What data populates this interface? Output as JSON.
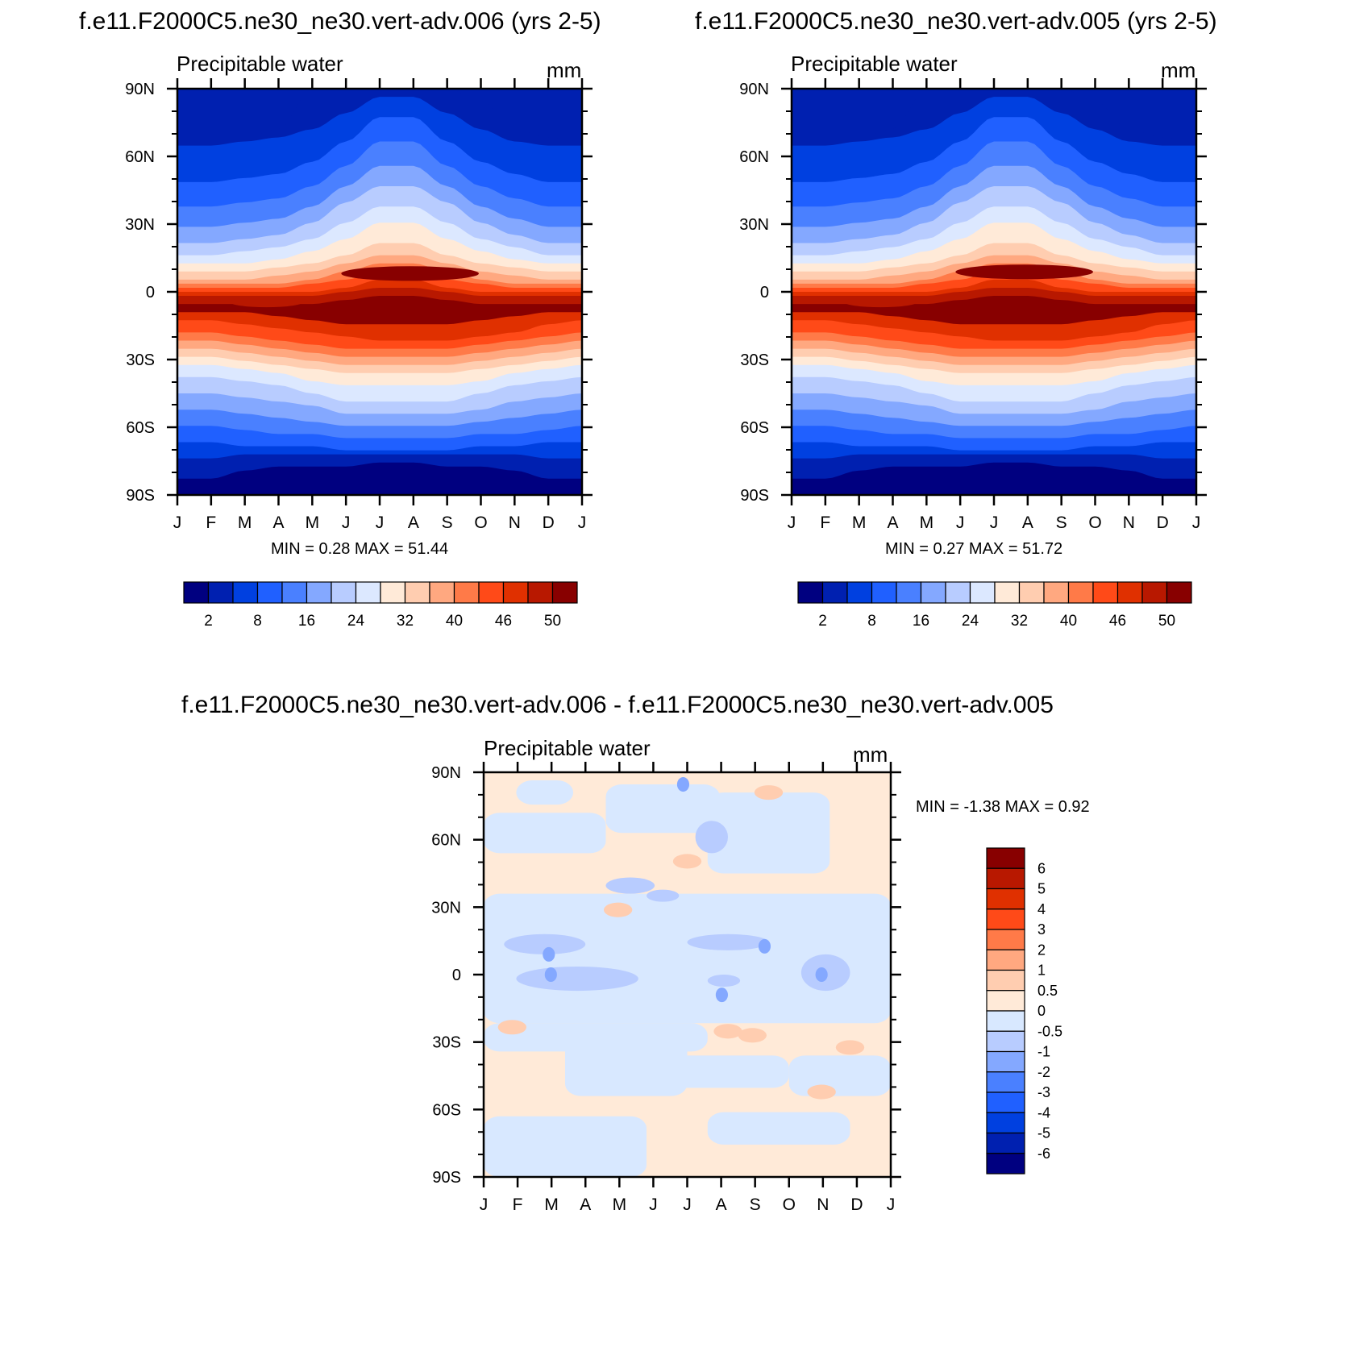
{
  "palette": [
    "#000080",
    "#0020b0",
    "#0040e0",
    "#2060ff",
    "#4a80ff",
    "#84a8ff",
    "#b8ccff",
    "#dce8ff",
    "#ffead8",
    "#ffcdb0",
    "#ffa880",
    "#ff7a48",
    "#ff4a18",
    "#e03000",
    "#b81800",
    "#880000"
  ],
  "diff_palette": [
    "#000080",
    "#0020b0",
    "#0040e0",
    "#2060ff",
    "#4a80ff",
    "#84a8ff",
    "#b8ccff",
    "#d8e8ff",
    "#ffead8",
    "#ffcdb0",
    "#ffa880",
    "#ff7a48",
    "#ff4a18",
    "#e03000",
    "#b81800",
    "#880000"
  ],
  "month_ticks": [
    "J",
    "F",
    "M",
    "A",
    "M",
    "J",
    "J",
    "A",
    "S",
    "O",
    "N",
    "D",
    "J"
  ],
  "lat_ticks": [
    "90N",
    "60N",
    "30N",
    "0",
    "30S",
    "60S",
    "90S"
  ],
  "panels": [
    {
      "title": "f.e11.F2000C5.ne30_ne30.vert-adv.006 (yrs 2-5)",
      "left_label": "Precipitable water",
      "right_label": "mm",
      "stats": "MIN =   0.28 MAX =  51.44",
      "colorbar_labels": [
        "2",
        "8",
        "16",
        "24",
        "32",
        "40",
        "46",
        "50"
      ]
    },
    {
      "title": "f.e11.F2000C5.ne30_ne30.vert-adv.005 (yrs 2-5)",
      "left_label": "Precipitable water",
      "right_label": "mm",
      "stats": "MIN =   0.27 MAX =  51.72",
      "colorbar_labels": [
        "2",
        "8",
        "16",
        "24",
        "32",
        "40",
        "46",
        "50"
      ]
    },
    {
      "title": "f.e11.F2000C5.ne30_ne30.vert-adv.006 - f.e11.F2000C5.ne30_ne30.vert-adv.005",
      "left_label": "Precipitable water",
      "right_label": "mm",
      "stats": "MIN =  -1.38 MAX =   0.92",
      "colorbar_labels": [
        "6",
        "5",
        "4",
        "3",
        "2",
        "1",
        "0.5",
        "0",
        "-0.5",
        "-1",
        "-2",
        "-3",
        "-4",
        "-5",
        "-6"
      ]
    }
  ],
  "chart_data": [
    {
      "type": "heatmap",
      "title": "f.e11.F2000C5.ne30_ne30.vert-adv.006 (yrs 2-5)",
      "variable": "Precipitable water",
      "units": "mm",
      "x": [
        "J",
        "F",
        "M",
        "A",
        "M",
        "J",
        "J",
        "A",
        "S",
        "O",
        "N",
        "D",
        "J"
      ],
      "y": [
        "90N",
        "60N",
        "30N",
        "0",
        "30S",
        "60S",
        "90S"
      ],
      "levels": [
        2,
        5,
        8,
        12,
        16,
        20,
        24,
        28,
        32,
        36,
        40,
        44,
        46,
        48,
        50
      ],
      "min": 0.28,
      "max": 51.44,
      "values_approx": [
        [
          1,
          1,
          1,
          1,
          2,
          4,
          6,
          5,
          3,
          2,
          1,
          1,
          1
        ],
        [
          5,
          5,
          5,
          6,
          9,
          14,
          18,
          17,
          12,
          8,
          6,
          5,
          5
        ],
        [
          18,
          18,
          18,
          20,
          23,
          28,
          34,
          33,
          28,
          24,
          21,
          19,
          18
        ],
        [
          40,
          41,
          42,
          42,
          43,
          45,
          47,
          48,
          46,
          44,
          43,
          41,
          40
        ],
        [
          30,
          31,
          32,
          30,
          27,
          24,
          22,
          22,
          23,
          25,
          27,
          29,
          30
        ],
        [
          10,
          10,
          9,
          9,
          8,
          7,
          7,
          7,
          8,
          8,
          9,
          10,
          10
        ],
        [
          1,
          1,
          1,
          1,
          1,
          1,
          1,
          1,
          1,
          1,
          1,
          1,
          1
        ]
      ]
    },
    {
      "type": "heatmap",
      "title": "f.e11.F2000C5.ne30_ne30.vert-adv.005 (yrs 2-5)",
      "variable": "Precipitable water",
      "units": "mm",
      "x": [
        "J",
        "F",
        "M",
        "A",
        "M",
        "J",
        "J",
        "A",
        "S",
        "O",
        "N",
        "D",
        "J"
      ],
      "y": [
        "90N",
        "60N",
        "30N",
        "0",
        "30S",
        "60S",
        "90S"
      ],
      "levels": [
        2,
        5,
        8,
        12,
        16,
        20,
        24,
        28,
        32,
        36,
        40,
        44,
        46,
        48,
        50
      ],
      "min": 0.27,
      "max": 51.72,
      "values_approx": [
        [
          1,
          1,
          1,
          1,
          2,
          4,
          6,
          5,
          3,
          2,
          1,
          1,
          1
        ],
        [
          5,
          5,
          5,
          6,
          9,
          14,
          18,
          17,
          12,
          8,
          6,
          5,
          5
        ],
        [
          18,
          18,
          18,
          20,
          23,
          28,
          34,
          33,
          28,
          24,
          21,
          19,
          18
        ],
        [
          41,
          42,
          42,
          43,
          44,
          46,
          48,
          49,
          47,
          45,
          43,
          41,
          41
        ],
        [
          30,
          31,
          32,
          30,
          27,
          24,
          22,
          22,
          23,
          25,
          27,
          29,
          30
        ],
        [
          10,
          10,
          9,
          9,
          8,
          7,
          7,
          7,
          8,
          8,
          9,
          10,
          10
        ],
        [
          1,
          1,
          1,
          1,
          1,
          1,
          1,
          1,
          1,
          1,
          1,
          1,
          1
        ]
      ]
    },
    {
      "type": "heatmap",
      "title": "f.e11.F2000C5.ne30_ne30.vert-adv.006 - f.e11.F2000C5.ne30_ne30.vert-adv.005",
      "variable": "Precipitable water",
      "units": "mm",
      "x": [
        "J",
        "F",
        "M",
        "A",
        "M",
        "J",
        "J",
        "A",
        "S",
        "O",
        "N",
        "D",
        "J"
      ],
      "y": [
        "90N",
        "60N",
        "30N",
        "0",
        "30S",
        "60S",
        "90S"
      ],
      "levels": [
        -6,
        -5,
        -4,
        -3,
        -2,
        -1,
        -0.5,
        0,
        0.5,
        1,
        2,
        3,
        4,
        5,
        6
      ],
      "min": -1.38,
      "max": 0.92
    }
  ]
}
